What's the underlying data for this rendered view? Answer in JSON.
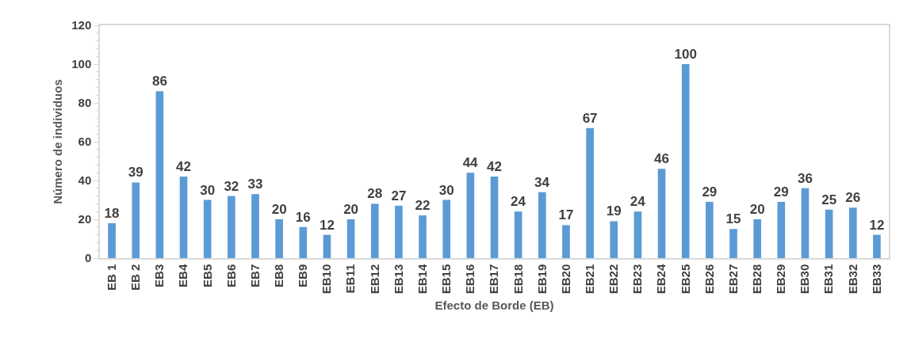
{
  "chart_data": {
    "type": "bar",
    "categories": [
      "EB 1",
      "EB 2",
      "EB3",
      "EB4",
      "EB5",
      "EB6",
      "EB7",
      "EB8",
      "EB9",
      "EB10",
      "EB11",
      "EB12",
      "EB13",
      "EB14",
      "EB15",
      "EB16",
      "EB17",
      "EB18",
      "EB19",
      "EB20",
      "EB21",
      "EB22",
      "EB23",
      "EB24",
      "EB25",
      "EB26",
      "EB27",
      "EB28",
      "EB29",
      "EB30",
      "EB31",
      "EB32",
      "EB33"
    ],
    "values": [
      18,
      39,
      86,
      42,
      30,
      32,
      33,
      20,
      16,
      12,
      20,
      28,
      27,
      22,
      30,
      44,
      42,
      24,
      34,
      17,
      67,
      19,
      24,
      46,
      100,
      29,
      15,
      20,
      29,
      36,
      25,
      26,
      12
    ],
    "color": "#5b9bd5",
    "xlabel": "Efecto de Borde (EB)",
    "ylabel": "Número de individuos",
    "ylim": [
      0,
      120
    ],
    "yticks": [
      0,
      {
        "value": 4,
        "label": null
      },
      {
        "value": 8,
        "label": null
      },
      {
        "value": 12,
        "label": null
      },
      {
        "value": 16,
        "label": null
      },
      20,
      {
        "value": 24,
        "label": null
      },
      {
        "value": 28,
        "label": null
      },
      {
        "value": 32,
        "label": null
      },
      {
        "value": 36,
        "label": null
      },
      40,
      {
        "value": 44,
        "label": null
      },
      {
        "value": 48,
        "label": null
      },
      {
        "value": 52,
        "label": null
      },
      {
        "value": 56,
        "label": null
      },
      60,
      {
        "value": 64,
        "label": null
      },
      {
        "value": 68,
        "label": null
      },
      {
        "value": 72,
        "label": null
      },
      {
        "value": 76,
        "label": null
      },
      80,
      {
        "value": 84,
        "label": null
      },
      {
        "value": 88,
        "label": null
      },
      {
        "value": 92,
        "label": null
      },
      {
        "value": 96,
        "label": null
      },
      100,
      {
        "value": 104,
        "label": null
      },
      {
        "value": 108,
        "label": null
      },
      {
        "value": 112,
        "label": null
      },
      {
        "value": 116,
        "label": null
      },
      120
    ],
    "data_labels": true,
    "grid": false
  }
}
